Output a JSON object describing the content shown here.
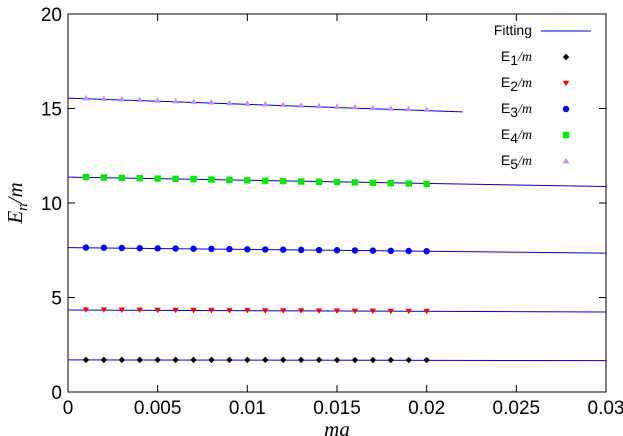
{
  "chart_data": {
    "type": "scatter",
    "xlabel": "ma",
    "ylabel": "E_n/m",
    "xlim": [
      0,
      0.03
    ],
    "ylim": [
      0,
      20
    ],
    "x_ticks": [
      "0",
      "0.005",
      "0.01",
      "0.015",
      "0.02",
      "0.025",
      "0.03"
    ],
    "x_tick_values": [
      0,
      0.005,
      0.01,
      0.015,
      0.02,
      0.025,
      0.03
    ],
    "y_ticks": [
      "0",
      "5",
      "10",
      "15",
      "20"
    ],
    "y_tick_values": [
      0,
      5,
      10,
      15,
      20
    ],
    "legend_position": "top-right",
    "fit_label": "Fitting",
    "fit_color": "#0000cc",
    "fit_lines": [
      {
        "x": [
          0,
          0.03
        ],
        "y": [
          1.7,
          1.66
        ]
      },
      {
        "x": [
          0,
          0.03
        ],
        "y": [
          4.34,
          4.23
        ]
      },
      {
        "x": [
          0,
          0.03
        ],
        "y": [
          7.64,
          7.35
        ]
      },
      {
        "x": [
          0,
          0.03
        ],
        "y": [
          11.37,
          10.87
        ]
      },
      {
        "x": [
          0,
          0.022
        ],
        "y": [
          15.55,
          14.82
        ]
      }
    ],
    "series": [
      {
        "name_base": "E",
        "name_sub": "1",
        "name_tail": "/m",
        "color": "#000000",
        "marker": "diamond",
        "x": [
          0.001,
          0.002,
          0.003,
          0.004,
          0.005,
          0.006,
          0.007,
          0.008,
          0.009,
          0.01,
          0.011,
          0.012,
          0.013,
          0.014,
          0.015,
          0.016,
          0.017,
          0.018,
          0.019,
          0.02
        ],
        "y": [
          1.7,
          1.7,
          1.7,
          1.7,
          1.7,
          1.7,
          1.7,
          1.7,
          1.7,
          1.7,
          1.7,
          1.7,
          1.7,
          1.7,
          1.69,
          1.69,
          1.69,
          1.69,
          1.69,
          1.69
        ]
      },
      {
        "name_base": "E",
        "name_sub": "2",
        "name_tail": "/m",
        "color": "#ff0000",
        "marker": "triangle-down",
        "x": [
          0.001,
          0.002,
          0.003,
          0.004,
          0.005,
          0.006,
          0.007,
          0.008,
          0.009,
          0.01,
          0.011,
          0.012,
          0.013,
          0.014,
          0.015,
          0.016,
          0.017,
          0.018,
          0.019,
          0.02
        ],
        "y": [
          4.36,
          4.36,
          4.35,
          4.35,
          4.34,
          4.34,
          4.33,
          4.33,
          4.32,
          4.32,
          4.31,
          4.31,
          4.31,
          4.3,
          4.3,
          4.29,
          4.29,
          4.28,
          4.28,
          4.28
        ]
      },
      {
        "name_base": "E",
        "name_sub": "3",
        "name_tail": "/m",
        "color": "#0000ff",
        "marker": "circle",
        "x": [
          0.001,
          0.002,
          0.003,
          0.004,
          0.005,
          0.006,
          0.007,
          0.008,
          0.009,
          0.01,
          0.011,
          0.012,
          0.013,
          0.014,
          0.015,
          0.016,
          0.017,
          0.018,
          0.019,
          0.02
        ],
        "y": [
          7.64,
          7.63,
          7.62,
          7.61,
          7.6,
          7.59,
          7.58,
          7.57,
          7.56,
          7.55,
          7.54,
          7.53,
          7.52,
          7.51,
          7.5,
          7.49,
          7.48,
          7.47,
          7.46,
          7.45
        ]
      },
      {
        "name_base": "E",
        "name_sub": "4",
        "name_tail": "/m",
        "color": "#00ee00",
        "marker": "square",
        "x": [
          0.001,
          0.002,
          0.003,
          0.004,
          0.005,
          0.006,
          0.007,
          0.008,
          0.009,
          0.01,
          0.011,
          0.012,
          0.013,
          0.014,
          0.015,
          0.016,
          0.017,
          0.018,
          0.019,
          0.02
        ],
        "y": [
          11.37,
          11.35,
          11.33,
          11.31,
          11.29,
          11.28,
          11.26,
          11.24,
          11.22,
          11.2,
          11.18,
          11.16,
          11.14,
          11.12,
          11.11,
          11.09,
          11.07,
          11.05,
          11.03,
          11.01
        ]
      },
      {
        "name_base": "E",
        "name_sub": "5",
        "name_tail": "/m",
        "color": "#cc88ff",
        "marker": "triangle-up",
        "x": [
          0.001,
          0.002,
          0.003,
          0.004,
          0.005,
          0.006,
          0.007,
          0.008,
          0.009,
          0.01,
          0.011,
          0.012,
          0.013,
          0.014,
          0.015,
          0.016,
          0.017,
          0.018,
          0.019,
          0.02
        ],
        "y": [
          15.55,
          15.52,
          15.49,
          15.46,
          15.42,
          15.39,
          15.36,
          15.33,
          15.29,
          15.26,
          15.23,
          15.2,
          15.16,
          15.13,
          15.1,
          15.07,
          15.03,
          15.0,
          14.97,
          14.94
        ]
      }
    ]
  }
}
